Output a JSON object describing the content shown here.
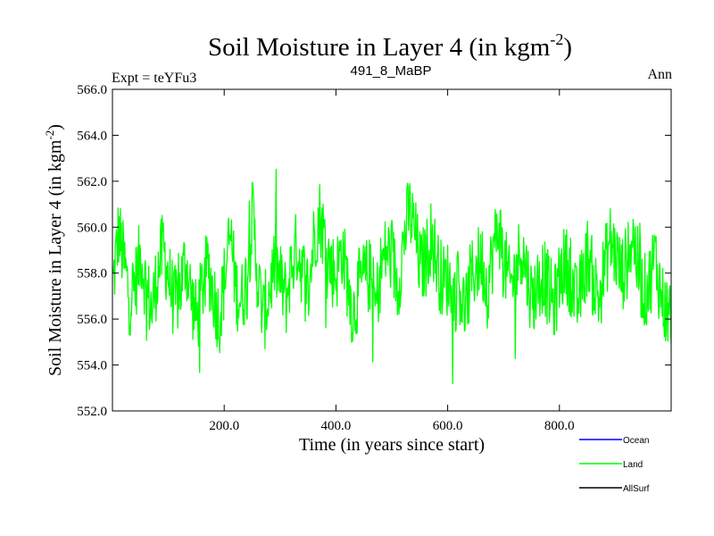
{
  "chart_data": {
    "type": "line",
    "title_main": "Soil Moisture in Layer 4 (in kgm",
    "title_sup": "-2",
    "title_close": ")",
    "experiment_label": "Expt = teYFu3",
    "subtitle": "491_8_MaBP",
    "period_label": "Ann",
    "xlabel": "Time (in years since start)",
    "ylabel_main": "Soil Moisture in Layer 4 (in kgm",
    "ylabel_sup": "-2",
    "ylabel_close": ")",
    "xlim": [
      0,
      1000
    ],
    "ylim": [
      552,
      566
    ],
    "x_ticks": [
      200,
      400,
      600,
      800
    ],
    "x_tick_labels": [
      "200.0",
      "400.0",
      "600.0",
      "800.0"
    ],
    "y_ticks": [
      552,
      554,
      556,
      558,
      560,
      562,
      564,
      566
    ],
    "y_tick_labels": [
      "552.0",
      "554.0",
      "556.0",
      "558.0",
      "560.0",
      "562.0",
      "564.0",
      "566.0"
    ],
    "legend": [
      {
        "name": "Ocean",
        "color": "#0000ff"
      },
      {
        "name": "Land",
        "color": "#00ff00"
      },
      {
        "name": "AllSurf",
        "color": "#000000"
      }
    ],
    "series": [
      {
        "name": "Land",
        "color": "#00ff00",
        "x_start": 1,
        "x_step": 10,
        "mean": 557.9,
        "values": [
          557.5,
          559.8,
          558.4,
          556.9,
          557.6,
          558.9,
          557.2,
          556.4,
          558.1,
          559.1,
          557.8,
          556.6,
          557.3,
          558.6,
          557.0,
          555.9,
          557.4,
          558.3,
          557.1,
          556.0,
          557.8,
          559.7,
          557.3,
          556.8,
          557.9,
          560.6,
          557.5,
          556.1,
          557.3,
          558.5,
          557.6,
          556.9,
          558.4,
          559.2,
          558.0,
          557.3,
          559.6,
          560.5,
          559.4,
          558.2,
          558.0,
          559.1,
          557.6,
          556.2,
          557.4,
          557.8,
          557.9,
          556.5,
          558.3,
          559.0,
          558.6,
          557.4,
          559.4,
          560.7,
          559.8,
          558.2,
          558.6,
          559.7,
          558.4,
          557.6,
          557.8,
          556.9,
          557.6,
          556.2,
          557.7,
          558.3,
          558.6,
          557.3,
          558.9,
          560.1,
          558.6,
          557.4,
          557.9,
          559.2,
          558.1,
          556.8,
          557.5,
          558.0,
          557.2,
          556.6,
          557.9,
          558.5,
          557.7,
          556.6,
          557.6,
          558.9,
          557.6,
          556.9,
          558.3,
          559.4,
          558.8,
          557.9,
          558.5,
          559.7,
          558.2,
          557.1,
          557.6,
          558.8,
          557.2,
          556.3
        ]
      }
    ]
  }
}
